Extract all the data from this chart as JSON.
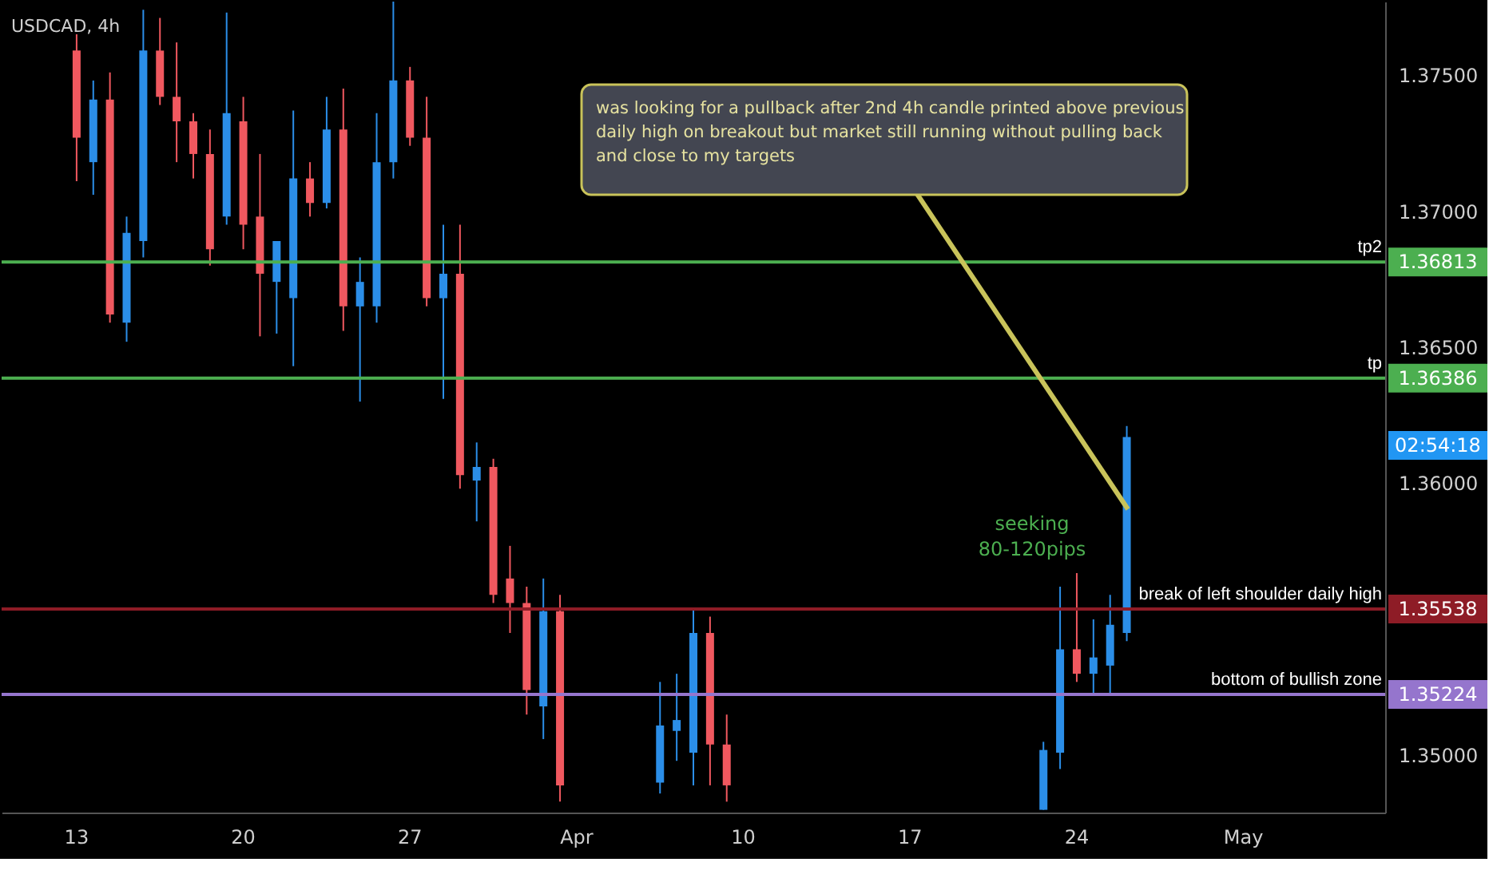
{
  "chart_data": {
    "type": "candlestick",
    "title": "USDCAD, 4h",
    "categories": [
      null,
      null,
      null,
      null,
      "13",
      null,
      null,
      null,
      null,
      null,
      null,
      null,
      null,
      null,
      "20",
      null,
      null,
      null,
      null,
      null,
      null,
      null,
      null,
      null,
      "27",
      null,
      null,
      null,
      null,
      null,
      null,
      null,
      null,
      null,
      "Apr",
      null,
      null,
      null,
      null,
      null,
      null,
      null,
      null,
      null,
      "10",
      null,
      null,
      null,
      null,
      null,
      null,
      null,
      null,
      null,
      "17",
      null,
      null,
      null,
      null,
      null,
      null,
      null,
      null,
      null,
      "24",
      null,
      null,
      null,
      null,
      null,
      null,
      null,
      null,
      null,
      "May",
      null,
      null,
      null,
      null,
      null,
      null,
      null,
      null
    ],
    "ohlc": [
      null,
      null,
      null,
      null,
      [
        1.3759,
        1.3765,
        1.3711,
        1.3727
      ],
      [
        1.3718,
        1.3748,
        1.3706,
        1.3741
      ],
      [
        1.3741,
        1.3751,
        1.3659,
        1.3662
      ],
      [
        1.3659,
        1.3698,
        1.3652,
        1.3692
      ],
      [
        1.3689,
        1.3774,
        1.3683,
        1.3759
      ],
      [
        1.3759,
        1.3771,
        1.3739,
        1.3742
      ],
      [
        1.3742,
        1.3762,
        1.3718,
        1.3733
      ],
      [
        1.3733,
        1.3736,
        1.3712,
        1.3721
      ],
      [
        1.3721,
        1.373,
        1.368,
        1.3686
      ],
      [
        1.3698,
        1.3773,
        1.3695,
        1.3736
      ],
      [
        1.3733,
        1.3742,
        1.3686,
        1.3695
      ],
      [
        1.3698,
        1.3721,
        1.3654,
        1.3677
      ],
      [
        1.3674,
        1.3689,
        1.3655,
        1.3689
      ],
      [
        1.3668,
        1.3737,
        1.3643,
        1.3712
      ],
      [
        1.3712,
        1.3718,
        1.3698,
        1.3703
      ],
      [
        1.3703,
        1.3742,
        1.3701,
        1.373
      ],
      [
        1.373,
        1.3745,
        1.3656,
        1.3665
      ],
      [
        1.3665,
        1.3683,
        1.363,
        1.3674
      ],
      [
        1.3665,
        1.3736,
        1.3659,
        1.3718
      ],
      [
        1.3718,
        1.3777,
        1.3712,
        1.3748
      ],
      [
        1.3748,
        1.3753,
        1.3724,
        1.3727
      ],
      [
        1.3727,
        1.3742,
        1.3665,
        1.3668
      ],
      [
        1.3668,
        1.3695,
        1.3631,
        1.3677
      ],
      [
        1.3677,
        1.3695,
        1.3598,
        1.3603
      ],
      [
        1.3601,
        1.3615,
        1.3586,
        1.3606
      ],
      [
        1.3606,
        1.3609,
        1.3556,
        1.3559
      ],
      [
        1.3565,
        1.3577,
        1.3545,
        1.3556
      ],
      [
        1.3556,
        1.3562,
        1.3515,
        1.3524
      ],
      [
        1.3518,
        1.3565,
        1.3506,
        1.3553
      ],
      [
        1.3553,
        1.3559,
        1.3483,
        1.3489
      ],
      null,
      null,
      null,
      null,
      null,
      [
        1.349,
        1.3527,
        1.3486,
        1.3511
      ],
      [
        1.3509,
        1.353,
        1.3498,
        1.3513
      ],
      [
        1.3501,
        1.3554,
        1.3489,
        1.3545
      ],
      [
        1.3545,
        1.3551,
        1.3489,
        1.3504
      ],
      [
        1.3504,
        1.3515,
        1.3483,
        1.3489
      ],
      null,
      null,
      null,
      null,
      null,
      null,
      null,
      null,
      null,
      null,
      null,
      null,
      null,
      null,
      null,
      null,
      null,
      null,
      [
        1.348,
        1.3505,
        1.348,
        1.3502
      ],
      [
        1.3501,
        1.3562,
        1.3495,
        1.3539
      ],
      [
        1.3539,
        1.3567,
        1.3527,
        1.353
      ],
      [
        1.353,
        1.355,
        1.3523,
        1.3536
      ],
      [
        1.3533,
        1.3559,
        1.3523,
        1.3548
      ],
      [
        1.3545,
        1.3621,
        1.3542,
        1.3617
      ],
      null,
      null,
      null,
      null,
      null,
      null,
      null,
      null,
      null,
      null,
      null,
      null,
      null,
      null,
      null
    ],
    "colors": [
      null,
      null,
      null,
      null,
      "#f0585f",
      "#2b8ee8",
      "#f0585f",
      "#2b8ee8",
      "#2b8ee8",
      "#f0585f",
      "#f0585f",
      "#f0585f",
      "#f0585f",
      "#2b8ee8",
      "#f0585f",
      "#f0585f",
      "#2b8ee8",
      "#2b8ee8",
      "#f0585f",
      "#2b8ee8",
      "#f0585f",
      "#2b8ee8",
      "#2b8ee8",
      "#2b8ee8",
      "#f0585f",
      "#f0585f",
      "#2b8ee8",
      "#f0585f",
      "#2b8ee8",
      "#f0585f",
      "#f0585f",
      "#f0585f",
      "#2b8ee8",
      "#f0585f",
      null,
      null,
      null,
      null,
      null,
      "#2b8ee8",
      "#2b8ee8",
      "#2b8ee8",
      "#f0585f",
      "#f0585f",
      null,
      null,
      null,
      null,
      null,
      null,
      null,
      null,
      null,
      null,
      null,
      null,
      null,
      null,
      null,
      null,
      null,
      null,
      "#2b8ee8",
      "#2b8ee8",
      "#f0585f",
      "#2b8ee8",
      "#2b8ee8",
      "#2b8ee8",
      null,
      null,
      null,
      null,
      null,
      null,
      null,
      null,
      null,
      null,
      null,
      null,
      null,
      null,
      null
    ],
    "ylim": [
      1.3479,
      1.3777
    ],
    "yticks": [
      {
        "value": 1.35,
        "label": "1.35000"
      },
      {
        "value": 1.36,
        "label": "1.36000"
      },
      {
        "value": 1.365,
        "label": "1.36500"
      },
      {
        "value": 1.37,
        "label": "1.37000"
      },
      {
        "value": 1.375,
        "label": "1.37500"
      }
    ],
    "ref_lines": [
      {
        "axis": "y",
        "value": 1.36813,
        "label": "tp2",
        "color": "#4caf50"
      },
      {
        "axis": "y",
        "value": 1.36386,
        "label": "tp",
        "color": "#4caf50"
      },
      {
        "axis": "y",
        "value": 1.35538,
        "label": "break of left shoulder daily high",
        "color": "#8e1c26"
      },
      {
        "axis": "y",
        "value": 1.35224,
        "label": "bottom of bullish zone",
        "color": "#9575cd"
      }
    ],
    "annotations": [
      "1.36813",
      "1.36386",
      "1.35538",
      "1.35224",
      "was looking for a pullback after 2nd 4h candle printed above previous\ndaily high on breakout but market still running without pulling back\nand close to my targets",
      "seeking\n80-120pips",
      "02:54:18"
    ],
    "grid": false
  }
}
